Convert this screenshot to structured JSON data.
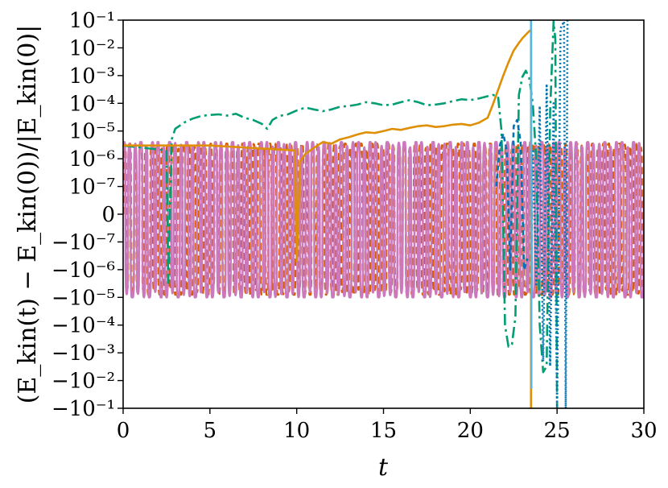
{
  "chart_data": {
    "type": "line",
    "title": "",
    "xlabel": "t",
    "ylabel": "(E_kin(t) − E_kin(0))/|E_kin(0)|",
    "scale": "symlog",
    "linthresh": 1e-07,
    "xlim": [
      0,
      30
    ],
    "ylim": [
      -0.1,
      0.1
    ],
    "x_ticks": [
      0,
      5,
      10,
      15,
      20,
      25,
      30
    ],
    "x_tick_labels": [
      "0",
      "5",
      "10",
      "15",
      "20",
      "25",
      "30"
    ],
    "y_ticks": [
      0.1,
      0.01,
      0.001,
      0.0001,
      1e-05,
      1e-06,
      1e-07,
      0,
      -1e-07,
      -1e-06,
      -1e-05,
      -0.0001,
      -0.001,
      -0.01,
      -0.1
    ],
    "y_tick_labels": [
      "10⁻¹",
      "10⁻²",
      "10⁻³",
      "10⁻⁴",
      "10⁻⁵",
      "10⁻⁶",
      "10⁻⁷",
      "0",
      "−10⁻⁷",
      "−10⁻⁶",
      "−10⁻⁵",
      "−10⁻⁴",
      "−10⁻³",
      "−10⁻²",
      "−10⁻¹"
    ],
    "legend": "none",
    "series": [
      {
        "name": "teal-dashdot",
        "color": "#029e73",
        "dash": "14,5,3,5",
        "x": [
          0,
          2.5,
          2.6,
          2.8,
          3.0,
          3.5,
          4.0,
          4.5,
          5.0,
          5.5,
          6.0,
          6.5,
          7.0,
          7.5,
          8.0,
          8.3,
          8.6,
          9.0,
          9.5,
          10.0,
          10.5,
          11.0,
          11.5,
          12.0,
          12.5,
          13.0,
          13.5,
          14.0,
          14.5,
          15.0,
          15.5,
          16.0,
          16.5,
          17.0,
          17.5,
          18.0,
          18.5,
          19.0,
          19.5,
          20.0,
          20.5,
          21.0,
          21.3,
          21.6,
          21.8,
          22.0,
          22.2,
          22.4,
          22.6,
          22.8,
          23.0,
          23.2,
          23.4,
          23.6,
          23.8,
          24.0,
          24.2,
          24.4,
          24.6,
          24.8,
          24.9,
          25.0
        ],
        "y": [
          3e-06,
          2e-06,
          -3e-06,
          5e-06,
          1.2e-05,
          2e-05,
          2.8e-05,
          3.5e-05,
          3.8e-05,
          4e-05,
          3.6e-05,
          4.2e-05,
          3e-05,
          2.5e-05,
          1.8e-05,
          1.2e-05,
          2.5e-05,
          3.5e-05,
          4e-05,
          5.5e-05,
          7e-05,
          6e-05,
          5.2e-05,
          6e-05,
          7.5e-05,
          8e-05,
          9e-05,
          0.00011,
          0.0001,
          8.5e-05,
          9e-05,
          0.00011,
          0.00013,
          0.00011,
          8.5e-05,
          9e-05,
          0.0001,
          0.00012,
          0.00014,
          0.00013,
          0.00015,
          0.00018,
          0.0002,
          0.00018,
          1e-05,
          -0.0001,
          -0.0006,
          -0.0005,
          -5e-05,
          0.0002,
          0.0009,
          0.0015,
          0.0008,
          0.0001,
          1e-06,
          -0.0001,
          -0.005,
          -0.003,
          5e-05,
          0.09,
          0.02,
          -0.1
        ]
      },
      {
        "name": "blue-dashed",
        "color": "#0173b2",
        "dash": "6,4",
        "x": [
          21.5,
          21.7,
          21.9,
          22.1,
          22.3,
          22.5,
          22.7,
          22.9,
          23.1,
          23.3
        ],
        "y": [
          1e-07,
          3e-06,
          8e-06,
          2e-06,
          -1e-06,
          1.5e-05,
          2.5e-05,
          4e-06,
          -1e-06,
          -4e-07
        ]
      },
      {
        "name": "blue-dotted",
        "color": "#0173b2",
        "dash": "2,3",
        "x": [
          23.6,
          23.8,
          24.0,
          24.2,
          24.4,
          24.6,
          24.8,
          25.0,
          25.2,
          25.4,
          25.5,
          25.6
        ],
        "y": [
          2e-06,
          -4e-06,
          8e-05,
          -0.002,
          0.0005,
          -0.003,
          0.0001,
          -0.08,
          0.05,
          0.09,
          -0.1,
          0.1
        ]
      },
      {
        "name": "orange-solid",
        "color": "#de8f05",
        "dash": "",
        "x": [
          0,
          5,
          9.9,
          10.0,
          10.05,
          10.2,
          10.5,
          11.0,
          11.5,
          12.0,
          12.5,
          13.0,
          13.5,
          14.0,
          14.5,
          15.0,
          15.5,
          16.0,
          16.5,
          17.0,
          17.5,
          18.0,
          18.5,
          19.0,
          19.5,
          20.0,
          20.5,
          21.0,
          21.3,
          21.6,
          21.9,
          22.2,
          22.5,
          22.8,
          23.0,
          23.2,
          23.4,
          23.5,
          23.5
        ],
        "y": [
          3e-06,
          3e-06,
          2e-06,
          -5e-07,
          -8e-08,
          8e-07,
          1.5e-06,
          2.5e-06,
          4e-06,
          3.5e-06,
          5e-06,
          6e-06,
          7.5e-06,
          9e-06,
          8.5e-06,
          1e-05,
          1.2e-05,
          1.1e-05,
          1.3e-05,
          1.5e-05,
          1.6e-05,
          1.4e-05,
          1.5e-05,
          1.7e-05,
          1.8e-05,
          1.6e-05,
          2e-05,
          3e-05,
          9e-05,
          0.0003,
          0.001,
          0.003,
          0.008,
          0.015,
          0.022,
          0.03,
          0.04,
          0.045,
          -0.1
        ]
      },
      {
        "name": "skyblue-solid",
        "color": "#56b4e9",
        "dash": "",
        "x": [
          23.48,
          23.5,
          23.52
        ],
        "y": [
          0.09,
          0.1,
          -0.02
        ]
      }
    ],
    "oscillation_series": [
      {
        "name": "vermillion-dashed",
        "color": "#d55e00",
        "dash": "9,5",
        "amplitude_upper": 3.5e-06,
        "amplitude_lower": -8e-06,
        "period": 0.31
      },
      {
        "name": "pink-solid",
        "color": "#cc78bc",
        "dash": "",
        "amplitude_upper": 4e-06,
        "amplitude_lower": -1e-05,
        "period": 0.33
      }
    ]
  }
}
